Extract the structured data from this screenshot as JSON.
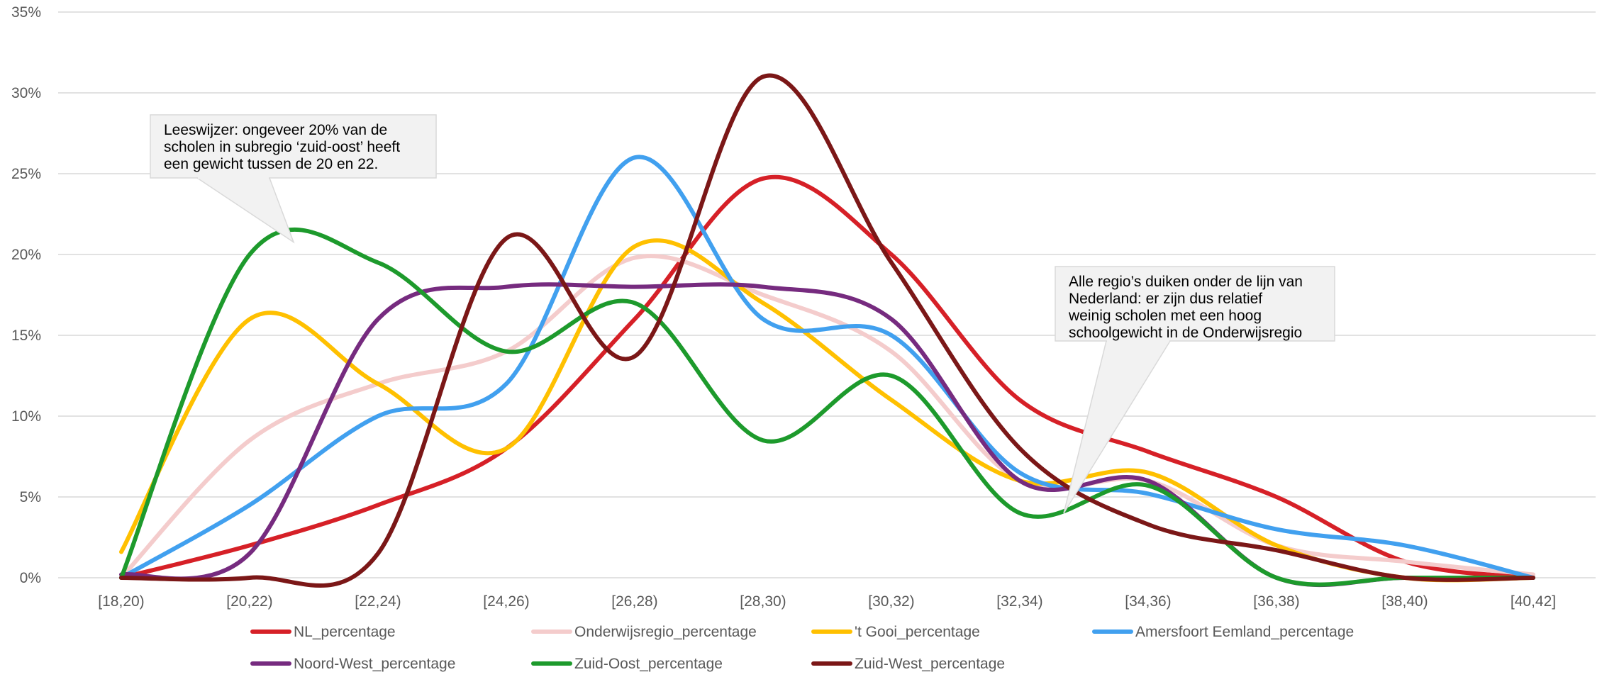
{
  "chart_data": {
    "type": "line",
    "categories": [
      "[18,20)",
      "[20,22)",
      "[22,24)",
      "[24,26)",
      "[26,28)",
      "[28,30)",
      "[30,32)",
      "[32,34)",
      "[34,36)",
      "[36,38)",
      "[38,40)",
      "[40,42]"
    ],
    "ylim": [
      0,
      35
    ],
    "yticks": [
      0,
      5,
      10,
      15,
      20,
      25,
      30,
      35
    ],
    "ytick_labels": [
      "0%",
      "5%",
      "10%",
      "15%",
      "20%",
      "25%",
      "30%",
      "35%"
    ],
    "grid": "horizontal",
    "smooth": true,
    "legend_position": "bottom",
    "series": [
      {
        "name": "NL_percentage",
        "color": "#d62027",
        "values": [
          0,
          2,
          4.5,
          8,
          16,
          24.7,
          20,
          11,
          7.8,
          5,
          1,
          0
        ]
      },
      {
        "name": "Onderwijsregio_percentage",
        "color": "#f4cccc",
        "values": [
          0,
          8.5,
          12,
          14,
          19.8,
          17.5,
          14,
          6,
          6,
          2,
          1,
          0.2
        ]
      },
      {
        "name": "'t Gooi_percentage",
        "color": "#ffc000",
        "values": [
          1.6,
          16,
          12,
          8,
          20.5,
          17,
          11,
          6,
          6.5,
          2,
          0,
          0
        ]
      },
      {
        "name": "Amersfoort Eemland_percentage",
        "color": "#41a0ef",
        "values": [
          0,
          4.5,
          10,
          12,
          26,
          16,
          15,
          6.5,
          5.2,
          3,
          2,
          0
        ]
      },
      {
        "name": "Noord-West_percentage",
        "color": "#762b7f",
        "values": [
          0.2,
          1.5,
          16,
          18,
          18,
          18,
          16,
          6,
          6,
          0,
          0,
          0
        ]
      },
      {
        "name": "Zuid-Oost_percentage",
        "color": "#1d9a2c",
        "values": [
          0,
          20,
          19.5,
          14,
          17,
          8.5,
          12.5,
          4,
          5.7,
          0,
          0,
          0
        ]
      },
      {
        "name": "Zuid-West_percentage",
        "color": "#7b1717",
        "values": [
          0,
          0,
          1.5,
          21,
          13.7,
          31,
          19.5,
          8,
          3.3,
          1.7,
          0,
          0
        ]
      }
    ],
    "annotations": [
      {
        "lines": [
          "Leeswijzer: ongeveer 20% van de",
          "scholen in subregio ‘zuid-oost’ heeft",
          "een gewicht tussen de 20 en 22."
        ],
        "points_to": {
          "category": "[20,22)",
          "value": 20.5
        }
      },
      {
        "lines": [
          "Alle regio’s duiken onder de lijn van",
          "Nederland: er zijn dus relatief",
          "weinig scholen met een hoog",
          "schoolgewicht in de Onderwijsregio"
        ],
        "points_to": {
          "category": "[32,34)",
          "value": 7.5
        }
      }
    ]
  }
}
